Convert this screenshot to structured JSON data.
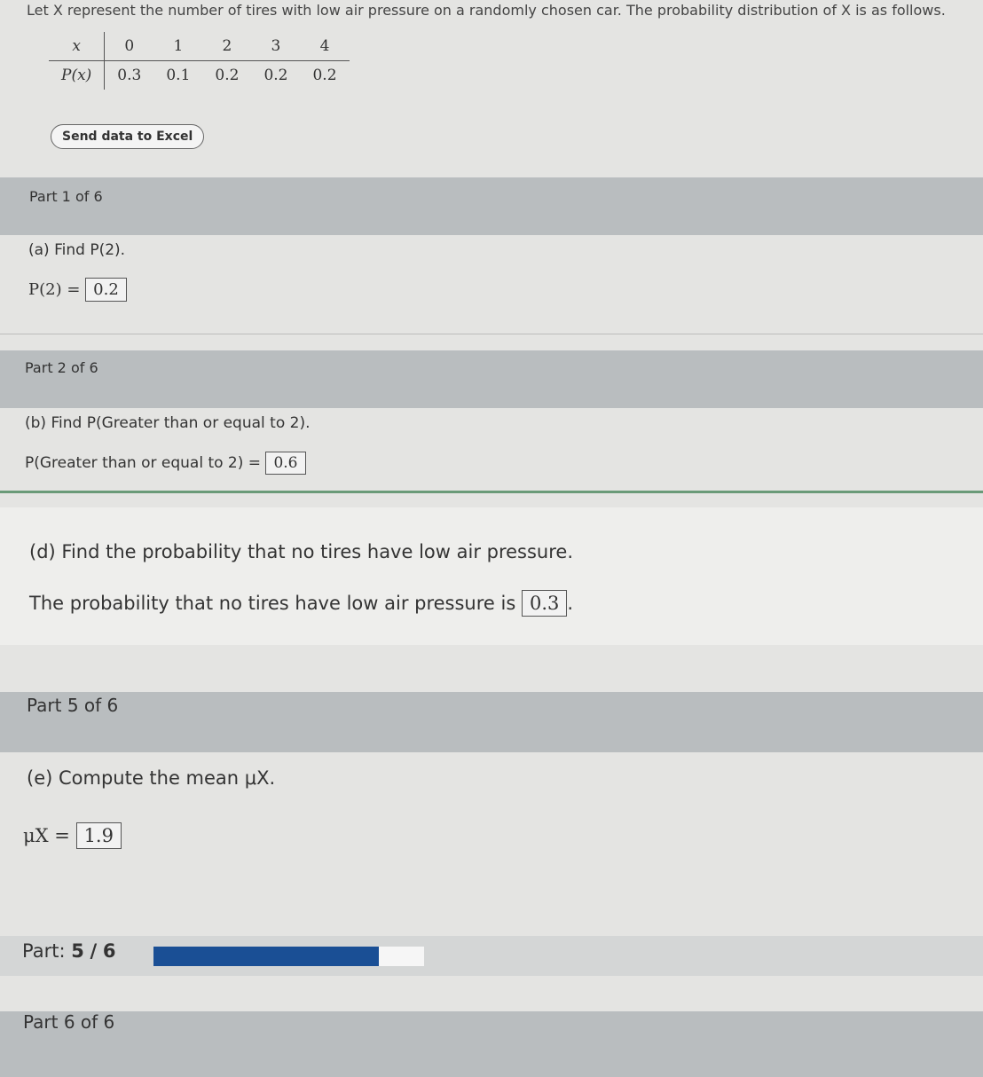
{
  "header": {
    "text": "Let X represent the number of tires with low air pressure on a randomly chosen car. The probability distribution of X is as follows."
  },
  "table": {
    "rows": [
      [
        "x",
        "0",
        "1",
        "2",
        "3",
        "4"
      ],
      [
        "P(x)",
        "0.3",
        "0.1",
        "0.2",
        "0.2",
        "0.2"
      ]
    ]
  },
  "button": {
    "label": "Send data to Excel"
  },
  "parts": [
    {
      "title": "Part 1 of 6",
      "question": "(a) Find P(2).",
      "prompt": "P(2) =",
      "answer": "0.2"
    },
    {
      "title": "Part 2 of 6",
      "question": "(b) Find P(Greater than or equal to 2).",
      "prompt": "P(Greater than or equal to 2) =",
      "answer": "0.6"
    },
    {
      "question": "(d) Find the probability that no tires have low air pressure.",
      "prompt": "The probability that no tires have low air pressure is",
      "answer": "0.3",
      "suffix": "."
    },
    {
      "title": "Part 5 of 6",
      "question": "(e) Compute the mean μX.",
      "prompt": "μX =",
      "answer": "1.9"
    }
  ],
  "progress": {
    "label": "Part:",
    "current": 5,
    "separator": "/",
    "total": 6
  },
  "next_part": {
    "title": "Part 6 of 6"
  }
}
